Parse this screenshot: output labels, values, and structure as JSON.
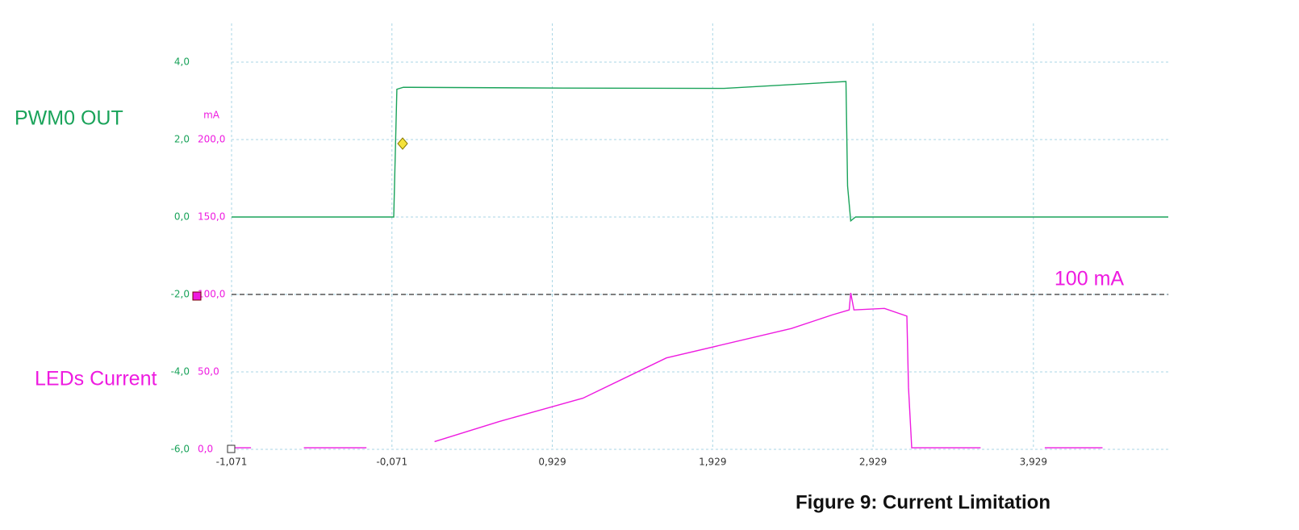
{
  "chart_data": {
    "type": "line",
    "title": "Figure 9: Current Limitation",
    "x": [
      -1.071,
      -0.95,
      -0.62,
      -0.23,
      -0.06,
      -0.04,
      0.0,
      1.0,
      2.0,
      2.76,
      2.77,
      2.79,
      2.82,
      3.5,
      4.77
    ],
    "xlim": [
      -1.071,
      4.77
    ],
    "xticks": [
      {
        "value": -1.071,
        "label": "-1,071"
      },
      {
        "value": -0.071,
        "label": "-0,071"
      },
      {
        "value": 0.929,
        "label": "0,929"
      },
      {
        "value": 1.929,
        "label": "1,929"
      },
      {
        "value": 2.929,
        "label": "2,929"
      },
      {
        "value": 3.929,
        "label": "3,929"
      }
    ],
    "ylim": [
      -6,
      5
    ],
    "yticks": [
      {
        "value": 4,
        "label": "4,0"
      },
      {
        "value": 2,
        "label": "2,0"
      },
      {
        "value": 0,
        "label": "0,0"
      },
      {
        "value": -2,
        "label": "-2,0"
      },
      {
        "value": -4,
        "label": "-4,0"
      },
      {
        "value": -6,
        "label": "-6,0"
      }
    ],
    "y2lim": [
      0,
      275
    ],
    "y2ticks": [
      {
        "value": 200,
        "label": "200,0"
      },
      {
        "value": 150,
        "label": "150,0"
      },
      {
        "value": 100,
        "label": "100,0"
      },
      {
        "value": 50,
        "label": "50,0"
      },
      {
        "value": 0,
        "label": "0,0"
      }
    ],
    "y2_unit": "mA",
    "grid": true,
    "series": [
      {
        "name": "PWM0 OUT",
        "color": "#1aa35a",
        "x": [
          -1.071,
          -0.06,
          -0.04,
          0.0,
          1.0,
          2.0,
          2.76,
          2.77,
          2.79,
          2.82,
          3.5,
          4.77
        ],
        "values": [
          0,
          0,
          3.3,
          3.35,
          3.33,
          3.32,
          3.5,
          0.8,
          -0.1,
          0,
          0,
          0
        ]
      },
      {
        "name": "LEDs Current",
        "color": "#ee1be0",
        "axis": "y2",
        "x": [
          -1.071,
          -0.95,
          -0.9,
          -0.62,
          -0.23,
          -0.2,
          0.195,
          0.6,
          1.12,
          1.64,
          2.42,
          2.68,
          2.78,
          2.79,
          2.81,
          3.0,
          3.14,
          3.15,
          3.17,
          3.6,
          3.65,
          4.0,
          4.36,
          4.4,
          4.77
        ],
        "values": [
          1,
          1,
          null,
          1,
          1,
          null,
          5,
          18,
          33,
          59,
          78,
          87,
          90,
          101,
          90,
          91,
          86,
          40,
          1,
          1,
          null,
          1,
          1,
          null,
          1
        ]
      }
    ],
    "annotations": [
      {
        "value": 100,
        "label": "100 mA"
      }
    ]
  }
}
